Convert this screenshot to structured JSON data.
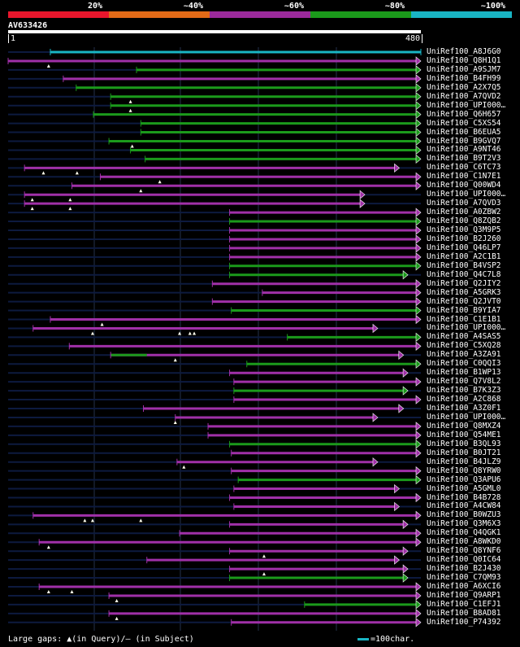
{
  "legend": {
    "segments": [
      {
        "label": "20%",
        "color": "#e8162c"
      },
      {
        "label": "~40%",
        "color": "#e26a17"
      },
      {
        "label": "~60%",
        "color": "#9b2a9b"
      },
      {
        "label": "~80%",
        "color": "#1b9a1b"
      },
      {
        "label": "~100%",
        "color": "#19b5c4"
      }
    ]
  },
  "query": {
    "id": "AV633426",
    "start": "1",
    "end": "480",
    "length": 480
  },
  "colors": {
    "purple": "#a030a8",
    "green": "#1b9a1b",
    "cyan": "#19b5c4",
    "guide": "#0d1a3f",
    "gridline": "#23324d"
  },
  "hits": [
    {
      "label": "UniRef100_A8J6G0",
      "start": 50,
      "end": 480,
      "color": "cyan",
      "arrow": "bar",
      "gaps": []
    },
    {
      "label": "UniRef100_Q8H1Q1",
      "start": 1,
      "end": 480,
      "color": "purple",
      "arrow": "tri",
      "gaps": [
        48
      ]
    },
    {
      "label": "UniRef100_A9SJM7",
      "start": 150,
      "end": 480,
      "color": "green",
      "arrow": "tri",
      "gaps": []
    },
    {
      "label": "UniRef100_B4FH99",
      "start": 65,
      "end": 480,
      "color": "purple",
      "arrow": "tri",
      "gaps": []
    },
    {
      "label": "UniRef100_A2X7Q5",
      "start": 80,
      "end": 480,
      "color": "green",
      "arrow": "tri",
      "gaps": []
    },
    {
      "label": "UniRef100_A7QVD2",
      "start": 120,
      "end": 480,
      "color": "green",
      "arrow": "tri",
      "gaps": [
        143
      ]
    },
    {
      "label": "UniRef100_UPI000…",
      "start": 120,
      "end": 480,
      "color": "green",
      "arrow": "tri",
      "gaps": [
        143
      ]
    },
    {
      "label": "UniRef100_Q6H657",
      "start": 100,
      "end": 480,
      "color": "green",
      "arrow": "tri",
      "gaps": []
    },
    {
      "label": "UniRef100_C5XS54",
      "start": 155,
      "end": 480,
      "color": "green",
      "arrow": "tri",
      "gaps": []
    },
    {
      "label": "UniRef100_B6EUA5",
      "start": 155,
      "end": 480,
      "color": "green",
      "arrow": "tri",
      "gaps": []
    },
    {
      "label": "UniRef100_B9GVQ7",
      "start": 118,
      "end": 480,
      "color": "green",
      "arrow": "tri",
      "gaps": [
        145
      ]
    },
    {
      "label": "UniRef100_A9NT46",
      "start": 143,
      "end": 480,
      "color": "green",
      "arrow": "tri",
      "gaps": []
    },
    {
      "label": "UniRef100_B9T2V3",
      "start": 160,
      "end": 480,
      "color": "green",
      "arrow": "tri",
      "gaps": []
    },
    {
      "label": "UniRef100_C6TC73",
      "start": 20,
      "end": 455,
      "color": "purple",
      "arrow": "tri",
      "gaps": [
        42,
        81
      ]
    },
    {
      "label": "UniRef100_C1N7E1",
      "start": 108,
      "end": 480,
      "color": "purple",
      "arrow": "tri",
      "gaps": [
        177
      ]
    },
    {
      "label": "UniRef100_Q00WD4",
      "start": 75,
      "end": 480,
      "color": "purple",
      "arrow": "tri",
      "gaps": [
        155
      ]
    },
    {
      "label": "UniRef100_UPI000…",
      "start": 20,
      "end": 415,
      "color": "purple",
      "arrow": "tri",
      "gaps": [
        29,
        73
      ]
    },
    {
      "label": "UniRef100_A7QVD3",
      "start": 20,
      "end": 415,
      "color": "purple",
      "arrow": "tri",
      "gaps": [
        29,
        73
      ]
    },
    {
      "label": "UniRef100_A0ZBW2",
      "start": 258,
      "end": 480,
      "color": "purple",
      "arrow": "tri",
      "gaps": []
    },
    {
      "label": "UniRef100_Q8ZQB2",
      "start": 258,
      "end": 480,
      "color": "green",
      "arrow": "tri",
      "gaps": []
    },
    {
      "label": "UniRef100_Q3M9P5",
      "start": 258,
      "end": 480,
      "color": "purple",
      "arrow": "tri",
      "gaps": []
    },
    {
      "label": "UniRef100_B2J260",
      "start": 258,
      "end": 480,
      "color": "purple",
      "arrow": "tri",
      "gaps": []
    },
    {
      "label": "UniRef100_Q46LP7",
      "start": 258,
      "end": 480,
      "color": "purple",
      "arrow": "tri",
      "gaps": []
    },
    {
      "label": "UniRef100_A2C1B1",
      "start": 258,
      "end": 480,
      "color": "purple",
      "arrow": "tri",
      "gaps": []
    },
    {
      "label": "UniRef100_B4VSP2",
      "start": 258,
      "end": 480,
      "color": "green",
      "arrow": "tri",
      "gaps": []
    },
    {
      "label": "UniRef100_Q4C7L8",
      "start": 258,
      "end": 465,
      "color": "green",
      "arrow": "tri",
      "gaps": []
    },
    {
      "label": "UniRef100_Q2JIY2",
      "start": 238,
      "end": 480,
      "color": "purple",
      "arrow": "tri",
      "gaps": []
    },
    {
      "label": "UniRef100_A5GRK3",
      "start": 296,
      "end": 480,
      "color": "purple",
      "arrow": "tri",
      "gaps": []
    },
    {
      "label": "UniRef100_Q2JVT0",
      "start": 238,
      "end": 480,
      "color": "purple",
      "arrow": "tri",
      "gaps": []
    },
    {
      "label": "UniRef100_B9YIA7",
      "start": 260,
      "end": 480,
      "color": "green",
      "arrow": "tri",
      "gaps": []
    },
    {
      "label": "UniRef100_C1E1B1",
      "start": 50,
      "end": 480,
      "color": "purple",
      "arrow": "tri",
      "gaps": [
        110
      ]
    },
    {
      "label": "UniRef100_UPI000…",
      "start": 30,
      "end": 430,
      "color": "purple",
      "arrow": "tri",
      "gaps": [
        99,
        200,
        212,
        217
      ]
    },
    {
      "label": "UniRef100_A4SAS5",
      "start": 325,
      "end": 480,
      "color": "green",
      "arrow": "tri",
      "gaps": []
    },
    {
      "label": "UniRef100_C5XQ28",
      "start": 72,
      "end": 480,
      "color": "purple",
      "arrow": "tri",
      "gaps": []
    },
    {
      "label": "UniRef100_A3ZA91",
      "start": 120,
      "end": 460,
      "color": "purple",
      "arrow": "tri",
      "gaps": [
        195
      ],
      "segments": [
        {
          "start": 120,
          "end": 162,
          "color": "green"
        }
      ]
    },
    {
      "label": "UniRef100_C0QQI3",
      "start": 278,
      "end": 480,
      "color": "green",
      "arrow": "tri",
      "gaps": []
    },
    {
      "label": "UniRef100_B1WP13",
      "start": 258,
      "end": 465,
      "color": "purple",
      "arrow": "tri",
      "gaps": []
    },
    {
      "label": "UniRef100_Q7V8L2",
      "start": 263,
      "end": 480,
      "color": "purple",
      "arrow": "tri",
      "gaps": []
    },
    {
      "label": "UniRef100_B7K3Z3",
      "start": 263,
      "end": 465,
      "color": "green",
      "arrow": "tri",
      "gaps": []
    },
    {
      "label": "UniRef100_A2C868",
      "start": 263,
      "end": 480,
      "color": "purple",
      "arrow": "tri",
      "gaps": []
    },
    {
      "label": "UniRef100_A3Z0F1",
      "start": 158,
      "end": 460,
      "color": "purple",
      "arrow": "tri",
      "gaps": []
    },
    {
      "label": "UniRef100_UPI000…",
      "start": 195,
      "end": 430,
      "color": "purple",
      "arrow": "tri",
      "gaps": [
        195
      ]
    },
    {
      "label": "UniRef100_Q8MXZ4",
      "start": 233,
      "end": 480,
      "color": "purple",
      "arrow": "tri",
      "gaps": []
    },
    {
      "label": "UniRef100_Q54ME1",
      "start": 233,
      "end": 480,
      "color": "purple",
      "arrow": "tri",
      "gaps": []
    },
    {
      "label": "UniRef100_B3QL93",
      "start": 258,
      "end": 480,
      "color": "green",
      "arrow": "tri",
      "gaps": []
    },
    {
      "label": "UniRef100_B0JT21",
      "start": 260,
      "end": 480,
      "color": "purple",
      "arrow": "tri",
      "gaps": []
    },
    {
      "label": "UniRef100_B4JLZ9",
      "start": 197,
      "end": 430,
      "color": "purple",
      "arrow": "tri",
      "gaps": [
        205
      ]
    },
    {
      "label": "UniRef100_Q8YRW0",
      "start": 260,
      "end": 480,
      "color": "purple",
      "arrow": "tri",
      "gaps": []
    },
    {
      "label": "UniRef100_Q3APU6",
      "start": 268,
      "end": 480,
      "color": "green",
      "arrow": "tri",
      "gaps": []
    },
    {
      "label": "UniRef100_A5GML0",
      "start": 263,
      "end": 455,
      "color": "purple",
      "arrow": "tri",
      "gaps": []
    },
    {
      "label": "UniRef100_B4B728",
      "start": 258,
      "end": 480,
      "color": "purple",
      "arrow": "tri",
      "gaps": []
    },
    {
      "label": "UniRef100_A4CW84",
      "start": 263,
      "end": 455,
      "color": "purple",
      "arrow": "tri",
      "gaps": []
    },
    {
      "label": "UniRef100_B0WZU3",
      "start": 30,
      "end": 480,
      "color": "purple",
      "arrow": "tri",
      "gaps": [
        90,
        99,
        155
      ]
    },
    {
      "label": "UniRef100_Q3M6X3",
      "start": 258,
      "end": 465,
      "color": "purple",
      "arrow": "tri",
      "gaps": []
    },
    {
      "label": "UniRef100_Q4QGK1",
      "start": 200,
      "end": 480,
      "color": "purple",
      "arrow": "tri",
      "gaps": []
    },
    {
      "label": "UniRef100_A8WKD0",
      "start": 37,
      "end": 480,
      "color": "purple",
      "arrow": "tri",
      "gaps": [
        48
      ]
    },
    {
      "label": "UniRef100_Q8YNF6",
      "start": 258,
      "end": 465,
      "color": "purple",
      "arrow": "tri",
      "gaps": [
        298
      ]
    },
    {
      "label": "UniRef100_Q0IC64",
      "start": 162,
      "end": 455,
      "color": "purple",
      "arrow": "tri",
      "gaps": []
    },
    {
      "label": "UniRef100_B2J430",
      "start": 258,
      "end": 465,
      "color": "purple",
      "arrow": "tri",
      "gaps": [
        298
      ]
    },
    {
      "label": "UniRef100_C7QM93",
      "start": 258,
      "end": 465,
      "color": "green",
      "arrow": "tri",
      "gaps": []
    },
    {
      "label": "UniRef100_A6XCI6",
      "start": 37,
      "end": 480,
      "color": "purple",
      "arrow": "tri",
      "gaps": [
        48,
        75
      ]
    },
    {
      "label": "UniRef100_Q9ARP1",
      "start": 118,
      "end": 480,
      "color": "purple",
      "arrow": "tri",
      "gaps": [
        127
      ]
    },
    {
      "label": "UniRef100_C1EFJ1",
      "start": 345,
      "end": 480,
      "color": "green",
      "arrow": "tri",
      "gaps": []
    },
    {
      "label": "UniRef100_B8AD81",
      "start": 118,
      "end": 480,
      "color": "purple",
      "arrow": "tri",
      "gaps": [
        127
      ]
    },
    {
      "label": "UniRef100_P74392",
      "start": 260,
      "end": 480,
      "color": "purple",
      "arrow": "tri",
      "gaps": []
    }
  ],
  "footer": {
    "gaps_text": "Large gaps: ▲(in Query)/– (in Subject)",
    "scale_text": "=100char."
  }
}
